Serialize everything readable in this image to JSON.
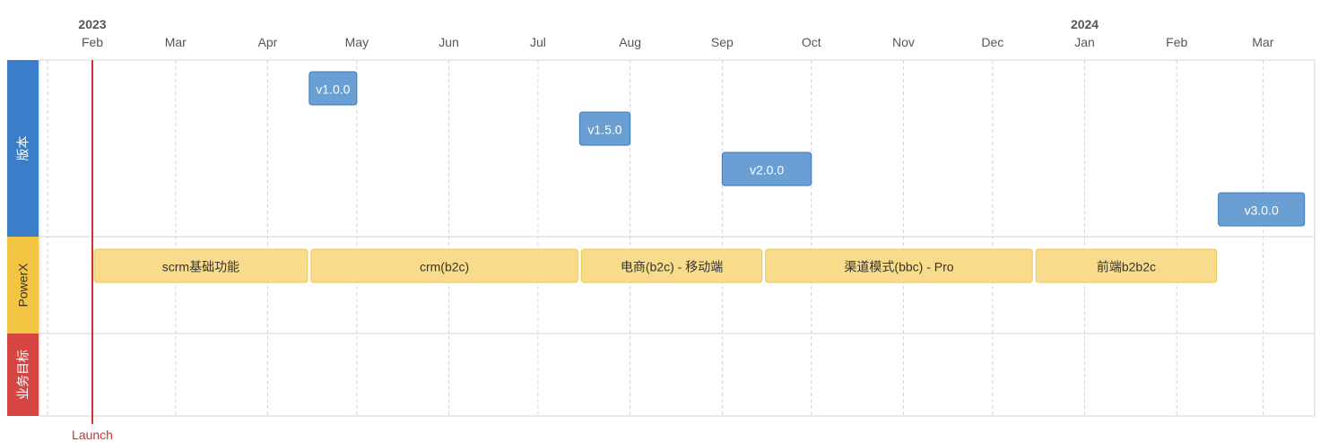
{
  "chart_data": {
    "type": "timeline",
    "years": [
      {
        "label": "2023",
        "start": "2023-02-01"
      },
      {
        "label": "2024",
        "start": "2024-01-01"
      }
    ],
    "months": [
      {
        "label": "Feb",
        "start": "2023-02-01"
      },
      {
        "label": "Mar",
        "start": "2023-03-01"
      },
      {
        "label": "Apr",
        "start": "2023-04-01"
      },
      {
        "label": "May",
        "start": "2023-05-01"
      },
      {
        "label": "Jun",
        "start": "2023-06-01"
      },
      {
        "label": "Jul",
        "start": "2023-07-01"
      },
      {
        "label": "Aug",
        "start": "2023-08-01"
      },
      {
        "label": "Sep",
        "start": "2023-09-01"
      },
      {
        "label": "Oct",
        "start": "2023-10-01"
      },
      {
        "label": "Nov",
        "start": "2023-11-01"
      },
      {
        "label": "Dec",
        "start": "2023-12-01"
      },
      {
        "label": "Jan",
        "start": "2024-01-01"
      },
      {
        "label": "Feb",
        "start": "2024-02-01"
      },
      {
        "label": "Mar",
        "start": "2024-03-01"
      }
    ],
    "x_range": [
      "2023-01-15",
      "2024-03-31"
    ],
    "lanes": [
      {
        "name": "版本",
        "color": "#3a7dc9",
        "text_color": "#ffffff",
        "items": [
          {
            "label": "v1.0.0",
            "start": "2023-04-15",
            "end": "2023-05-01"
          },
          {
            "label": "v1.5.0",
            "start": "2023-07-15",
            "end": "2023-08-01"
          },
          {
            "label": "v2.0.0",
            "start": "2023-09-01",
            "end": "2023-10-01"
          },
          {
            "label": "v3.0.0",
            "start": "2024-02-15",
            "end": "2024-03-15"
          }
        ]
      },
      {
        "name": "PowerX",
        "color": "#f4c542",
        "text_color": "#333333",
        "items": [
          {
            "label": "scrm基础功能",
            "start": "2023-02-01",
            "end": "2023-04-15"
          },
          {
            "label": "crm(b2c)",
            "start": "2023-04-15",
            "end": "2023-07-15"
          },
          {
            "label": "电商(b2c) - 移动端",
            "start": "2023-07-15",
            "end": "2023-09-15"
          },
          {
            "label": "渠道模式(bbc) - Pro",
            "start": "2023-09-15",
            "end": "2023-12-15"
          },
          {
            "label": "前端b2b2c",
            "start": "2023-12-15",
            "end": "2024-02-15"
          }
        ]
      },
      {
        "name": "业务目标",
        "color": "#d64541",
        "text_color": "#ffffff",
        "items": []
      }
    ],
    "milestones": [
      {
        "label": "Launch",
        "date": "2023-02-01",
        "color": "#cc3333"
      }
    ],
    "colors": {
      "version_bar": "#6a9fd4",
      "version_bar_border": "#3d78bd",
      "version_text": "#ffffff",
      "feature_bar": "#f8dc8c",
      "feature_bar_border": "#ecc45a",
      "feature_text": "#333333",
      "grid": "#d4d4d4",
      "axis_text": "#555555"
    }
  }
}
